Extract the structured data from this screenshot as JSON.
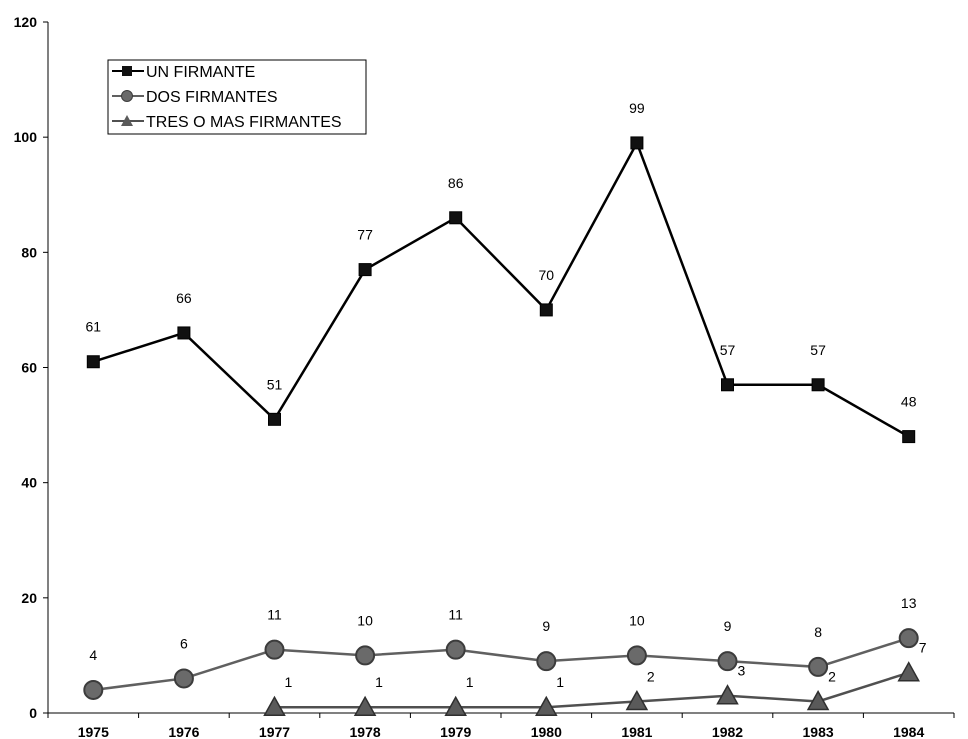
{
  "chart_data": {
    "type": "line",
    "x": [
      "1975",
      "1976",
      "1977",
      "1978",
      "1979",
      "1980",
      "1981",
      "1982",
      "1983",
      "1984"
    ],
    "ylim": [
      0,
      120
    ],
    "yticks": [
      0,
      20,
      40,
      60,
      80,
      100,
      120
    ],
    "grid": false,
    "legend": "top-left",
    "series": [
      {
        "name": "UN FIRMANTE",
        "marker": "square",
        "color": "#000000",
        "values": [
          61,
          66,
          51,
          77,
          86,
          70,
          99,
          57,
          57,
          48
        ]
      },
      {
        "name": "DOS FIRMANTES",
        "marker": "circle",
        "color": "#606060",
        "values": [
          4,
          6,
          11,
          10,
          11,
          9,
          10,
          9,
          8,
          13
        ]
      },
      {
        "name": "TRES O MAS FIRMANTES",
        "marker": "triangle",
        "color": "#505050",
        "values": [
          null,
          null,
          1,
          1,
          1,
          1,
          2,
          3,
          2,
          7
        ]
      }
    ]
  }
}
